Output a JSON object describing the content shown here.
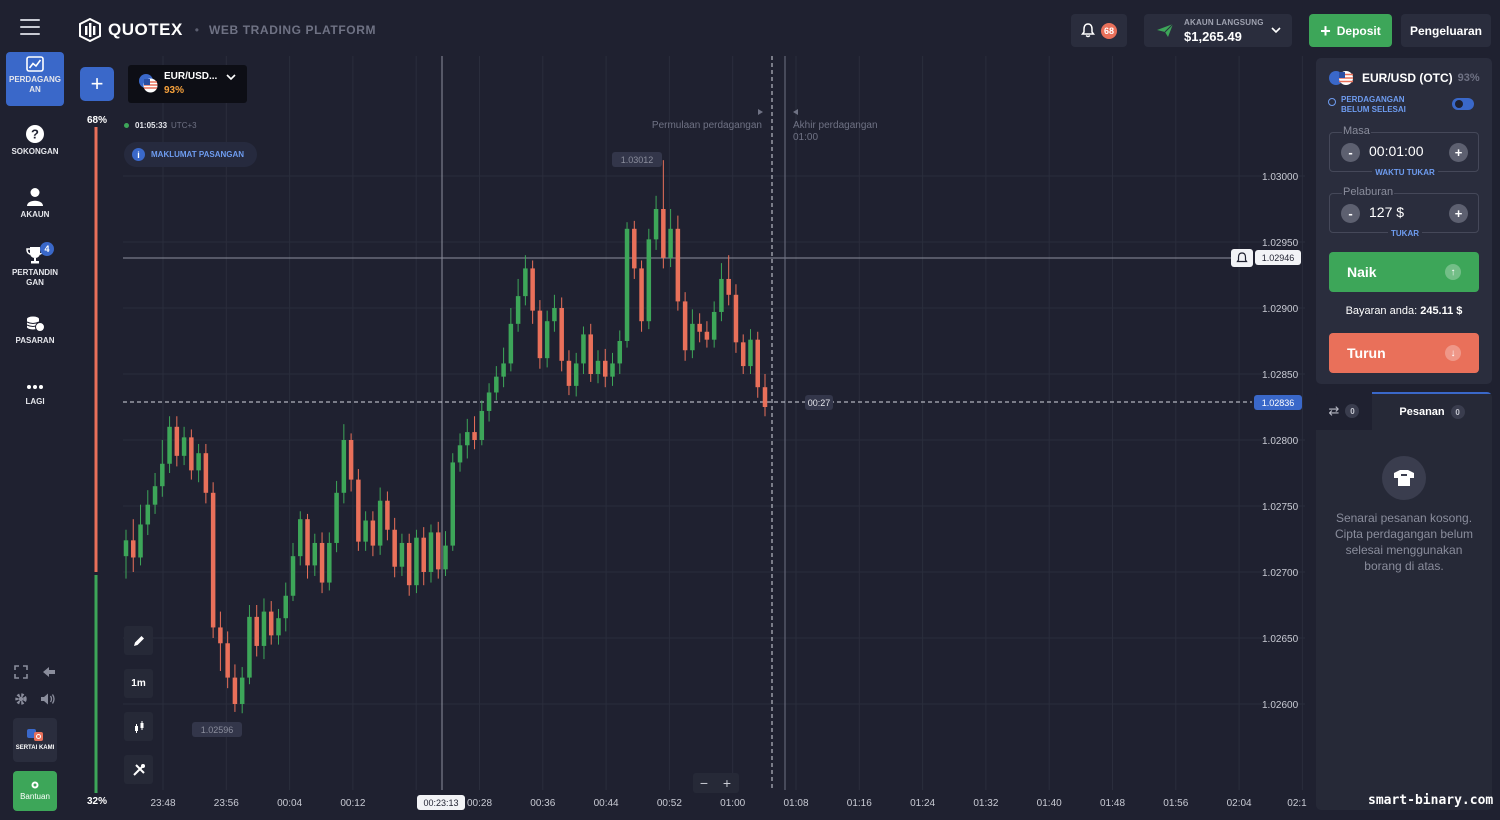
{
  "header": {
    "brand": "QUOTEX",
    "subtitle": "WEB TRADING PLATFORM",
    "notifications_count": "68",
    "account_label": "AKAUN LANGSUNG",
    "account_balance": "$1,265.49",
    "deposit_label": "Deposit",
    "withdraw_label": "Pengeluaran"
  },
  "sidebar": {
    "items": [
      {
        "label": "PERDAGANG AN",
        "icon": "chart-icon",
        "active": true
      },
      {
        "label": "SOKONGAN",
        "icon": "help-icon"
      },
      {
        "label": "AKAUN",
        "icon": "user-icon"
      },
      {
        "label": "PERTANDIN GAN",
        "icon": "trophy-icon",
        "badge": "4"
      },
      {
        "label": "PASARAN",
        "icon": "coins-icon"
      },
      {
        "label": "LAGI",
        "icon": "more-icon"
      }
    ],
    "follow_label": "SERTAI KAMI",
    "help_label": "Bantuan"
  },
  "pair_selector": {
    "name": "EUR/USD...",
    "payout": "93%"
  },
  "chart_info": {
    "server_time": "01:05:33",
    "timezone": "UTC+3",
    "pair_info_label": "MAKLUMAT PASANGAN",
    "sentiment_up": "68%",
    "sentiment_down": "32%",
    "trade_start_label": "Permulaan perdagangan",
    "trade_end_label": "Akhir perdagangan",
    "trade_end_time": "01:00",
    "timeframe": "1m",
    "countdown": "00:27",
    "crosshair_time": "00:23:13"
  },
  "chart_data": {
    "type": "candlestick",
    "y_ticks": [
      "1.03000",
      "1.02950",
      "1.02900",
      "1.02850",
      "1.02800",
      "1.02750",
      "1.02700",
      "1.02650",
      "1.02600"
    ],
    "x_ticks": [
      "23:48",
      "23:56",
      "00:04",
      "00:12",
      "00:28",
      "00:36",
      "00:44",
      "00:52",
      "01:00",
      "01:08",
      "01:16",
      "01:24",
      "01:32",
      "01:40",
      "01:48",
      "01:56",
      "02:04"
    ],
    "high_label": "1.03012",
    "low_label": "1.02596",
    "current_price": "1.02836",
    "crosshair_price": "1.02946",
    "ylim": [
      1.0258,
      1.0304
    ],
    "candles": [
      [
        1.02712,
        1.02724,
        1.02695,
        1.02732
      ],
      [
        1.02724,
        1.02711,
        1.027,
        1.0274
      ],
      [
        1.02711,
        1.02736,
        1.02705,
        1.02751
      ],
      [
        1.02736,
        1.02751,
        1.02728,
        1.02762
      ],
      [
        1.02751,
        1.02765,
        1.02744,
        1.02775
      ],
      [
        1.02765,
        1.02782,
        1.02757,
        1.028
      ],
      [
        1.02782,
        1.0281,
        1.02775,
        1.02818
      ],
      [
        1.0281,
        1.02788,
        1.0278,
        1.02818
      ],
      [
        1.02788,
        1.02802,
        1.02781,
        1.0281
      ],
      [
        1.02802,
        1.02777,
        1.0277,
        1.02808
      ],
      [
        1.02777,
        1.0279,
        1.02768,
        1.02797
      ],
      [
        1.0279,
        1.0276,
        1.02752,
        1.02797
      ],
      [
        1.0276,
        1.02658,
        1.0265,
        1.02768
      ],
      [
        1.02658,
        1.02646,
        1.02625,
        1.0267
      ],
      [
        1.02646,
        1.0262,
        1.02612,
        1.02655
      ],
      [
        1.0262,
        1.026,
        1.02594,
        1.0263
      ],
      [
        1.026,
        1.0262,
        1.02593,
        1.02628
      ],
      [
        1.0262,
        1.02666,
        1.02615,
        1.02675
      ],
      [
        1.02666,
        1.02644,
        1.02636,
        1.02675
      ],
      [
        1.02644,
        1.0267,
        1.02634,
        1.0268
      ],
      [
        1.0267,
        1.02652,
        1.02645,
        1.02678
      ],
      [
        1.02652,
        1.02665,
        1.02645,
        1.02672
      ],
      [
        1.02665,
        1.02682,
        1.02655,
        1.02692
      ],
      [
        1.02682,
        1.02712,
        1.02678,
        1.02722
      ],
      [
        1.02712,
        1.0274,
        1.02705,
        1.02746
      ],
      [
        1.0274,
        1.02705,
        1.02695,
        1.02744
      ],
      [
        1.02705,
        1.02722,
        1.02697,
        1.02729
      ],
      [
        1.02722,
        1.02692,
        1.02684,
        1.0273
      ],
      [
        1.02692,
        1.02722,
        1.02686,
        1.0273
      ],
      [
        1.02722,
        1.0276,
        1.02715,
        1.02769
      ],
      [
        1.0276,
        1.028,
        1.02752,
        1.02812
      ],
      [
        1.028,
        1.0277,
        1.02761,
        1.02805
      ],
      [
        1.0277,
        1.02723,
        1.02716,
        1.02778
      ],
      [
        1.02723,
        1.02739,
        1.02716,
        1.02746
      ],
      [
        1.02739,
        1.0272,
        1.02712,
        1.02746
      ],
      [
        1.0272,
        1.02754,
        1.02713,
        1.02764
      ],
      [
        1.02754,
        1.02732,
        1.02724,
        1.02761
      ],
      [
        1.02732,
        1.02704,
        1.02696,
        1.02741
      ],
      [
        1.02704,
        1.02722,
        1.02697,
        1.02729
      ],
      [
        1.02722,
        1.0269,
        1.02682,
        1.02729
      ],
      [
        1.0269,
        1.02726,
        1.02684,
        1.02732
      ],
      [
        1.02726,
        1.027,
        1.0269,
        1.02734
      ],
      [
        1.027,
        1.0273,
        1.02692,
        1.02736
      ],
      [
        1.0273,
        1.02702,
        1.02695,
        1.02738
      ],
      [
        1.02702,
        1.0272,
        1.02697,
        1.02731
      ],
      [
        1.0272,
        1.02783,
        1.02716,
        1.0279
      ],
      [
        1.02783,
        1.02796,
        1.02776,
        1.02805
      ],
      [
        1.02796,
        1.02806,
        1.02786,
        1.02816
      ],
      [
        1.02806,
        1.028,
        1.02793,
        1.02818
      ],
      [
        1.028,
        1.02822,
        1.02796,
        1.0283
      ],
      [
        1.02822,
        1.02836,
        1.02814,
        1.02843
      ],
      [
        1.02836,
        1.02848,
        1.0283,
        1.02856
      ],
      [
        1.02848,
        1.02858,
        1.0284,
        1.0287
      ],
      [
        1.02858,
        1.02888,
        1.02852,
        1.029
      ],
      [
        1.02888,
        1.02909,
        1.02882,
        1.02922
      ],
      [
        1.02909,
        1.0293,
        1.02902,
        1.0294
      ],
      [
        1.0293,
        1.02898,
        1.02888,
        1.02936
      ],
      [
        1.02898,
        1.02862,
        1.02854,
        1.02906
      ],
      [
        1.02862,
        1.0289,
        1.02855,
        1.02898
      ],
      [
        1.0289,
        1.029,
        1.02882,
        1.0291
      ],
      [
        1.029,
        1.0286,
        1.02852,
        1.02908
      ],
      [
        1.0286,
        1.02841,
        1.02834,
        1.02868
      ],
      [
        1.02841,
        1.02858,
        1.02833,
        1.02866
      ],
      [
        1.02858,
        1.0288,
        1.0285,
        1.02886
      ],
      [
        1.0288,
        1.0285,
        1.02844,
        1.02888
      ],
      [
        1.0285,
        1.0286,
        1.02843,
        1.02868
      ],
      [
        1.0286,
        1.02848,
        1.0284,
        1.02869
      ],
      [
        1.02848,
        1.02858,
        1.02841,
        1.02866
      ],
      [
        1.02858,
        1.02875,
        1.0285,
        1.02883
      ],
      [
        1.02875,
        1.0296,
        1.0287,
        1.02965
      ],
      [
        1.0296,
        1.0293,
        1.02922,
        1.02966
      ],
      [
        1.0293,
        1.0289,
        1.02882,
        1.02936
      ],
      [
        1.0289,
        1.02952,
        1.02884,
        1.0296
      ],
      [
        1.02952,
        1.02975,
        1.02944,
        1.02985
      ],
      [
        1.02975,
        1.02938,
        1.0293,
        1.03012
      ],
      [
        1.02938,
        1.0296,
        1.02931,
        1.02975
      ],
      [
        1.0296,
        1.02905,
        1.02898,
        1.0297
      ],
      [
        1.02905,
        1.02868,
        1.0286,
        1.02912
      ],
      [
        1.02868,
        1.02888,
        1.02862,
        1.02899
      ],
      [
        1.02888,
        1.02882,
        1.02874,
        1.02896
      ],
      [
        1.02882,
        1.02876,
        1.0287,
        1.0289
      ],
      [
        1.02876,
        1.02897,
        1.0287,
        1.02905
      ],
      [
        1.02897,
        1.02922,
        1.0289,
        1.02934
      ],
      [
        1.02922,
        1.0291,
        1.02902,
        1.0294
      ],
      [
        1.0291,
        1.02874,
        1.02866,
        1.02918
      ],
      [
        1.02874,
        1.02856,
        1.0285,
        1.0288
      ],
      [
        1.02856,
        1.02876,
        1.0285,
        1.02884
      ],
      [
        1.02876,
        1.0284,
        1.02832,
        1.02882
      ],
      [
        1.0284,
        1.02825,
        1.02818,
        1.0285
      ]
    ]
  },
  "trade_panel": {
    "pair": "EUR/USD (OTC)",
    "payout": "93%",
    "pending_label": "PERDAGANGAN BELUM SELESAI",
    "time_label": "Masa",
    "time_value": "00:01:00",
    "time_switch": "WAKTU TUKAR",
    "amount_label": "Pelaburan",
    "amount_value": "127 $",
    "amount_switch": "TUKAR",
    "up_label": "Naik",
    "down_label": "Turun",
    "payout_label": "Bayaran anda:",
    "payout_value": "245.11 $"
  },
  "orders": {
    "trades_count": "0",
    "orders_label": "Pesanan",
    "orders_count": "0",
    "empty_text": "Senarai pesanan kosong. Cipta perdagangan belum selesai menggunakan borang di atas."
  },
  "watermark": "smart-binary.com",
  "colors": {
    "bg": "#1f2130",
    "up": "#3da659",
    "down": "#e9705a",
    "accent": "#3a68c9"
  }
}
